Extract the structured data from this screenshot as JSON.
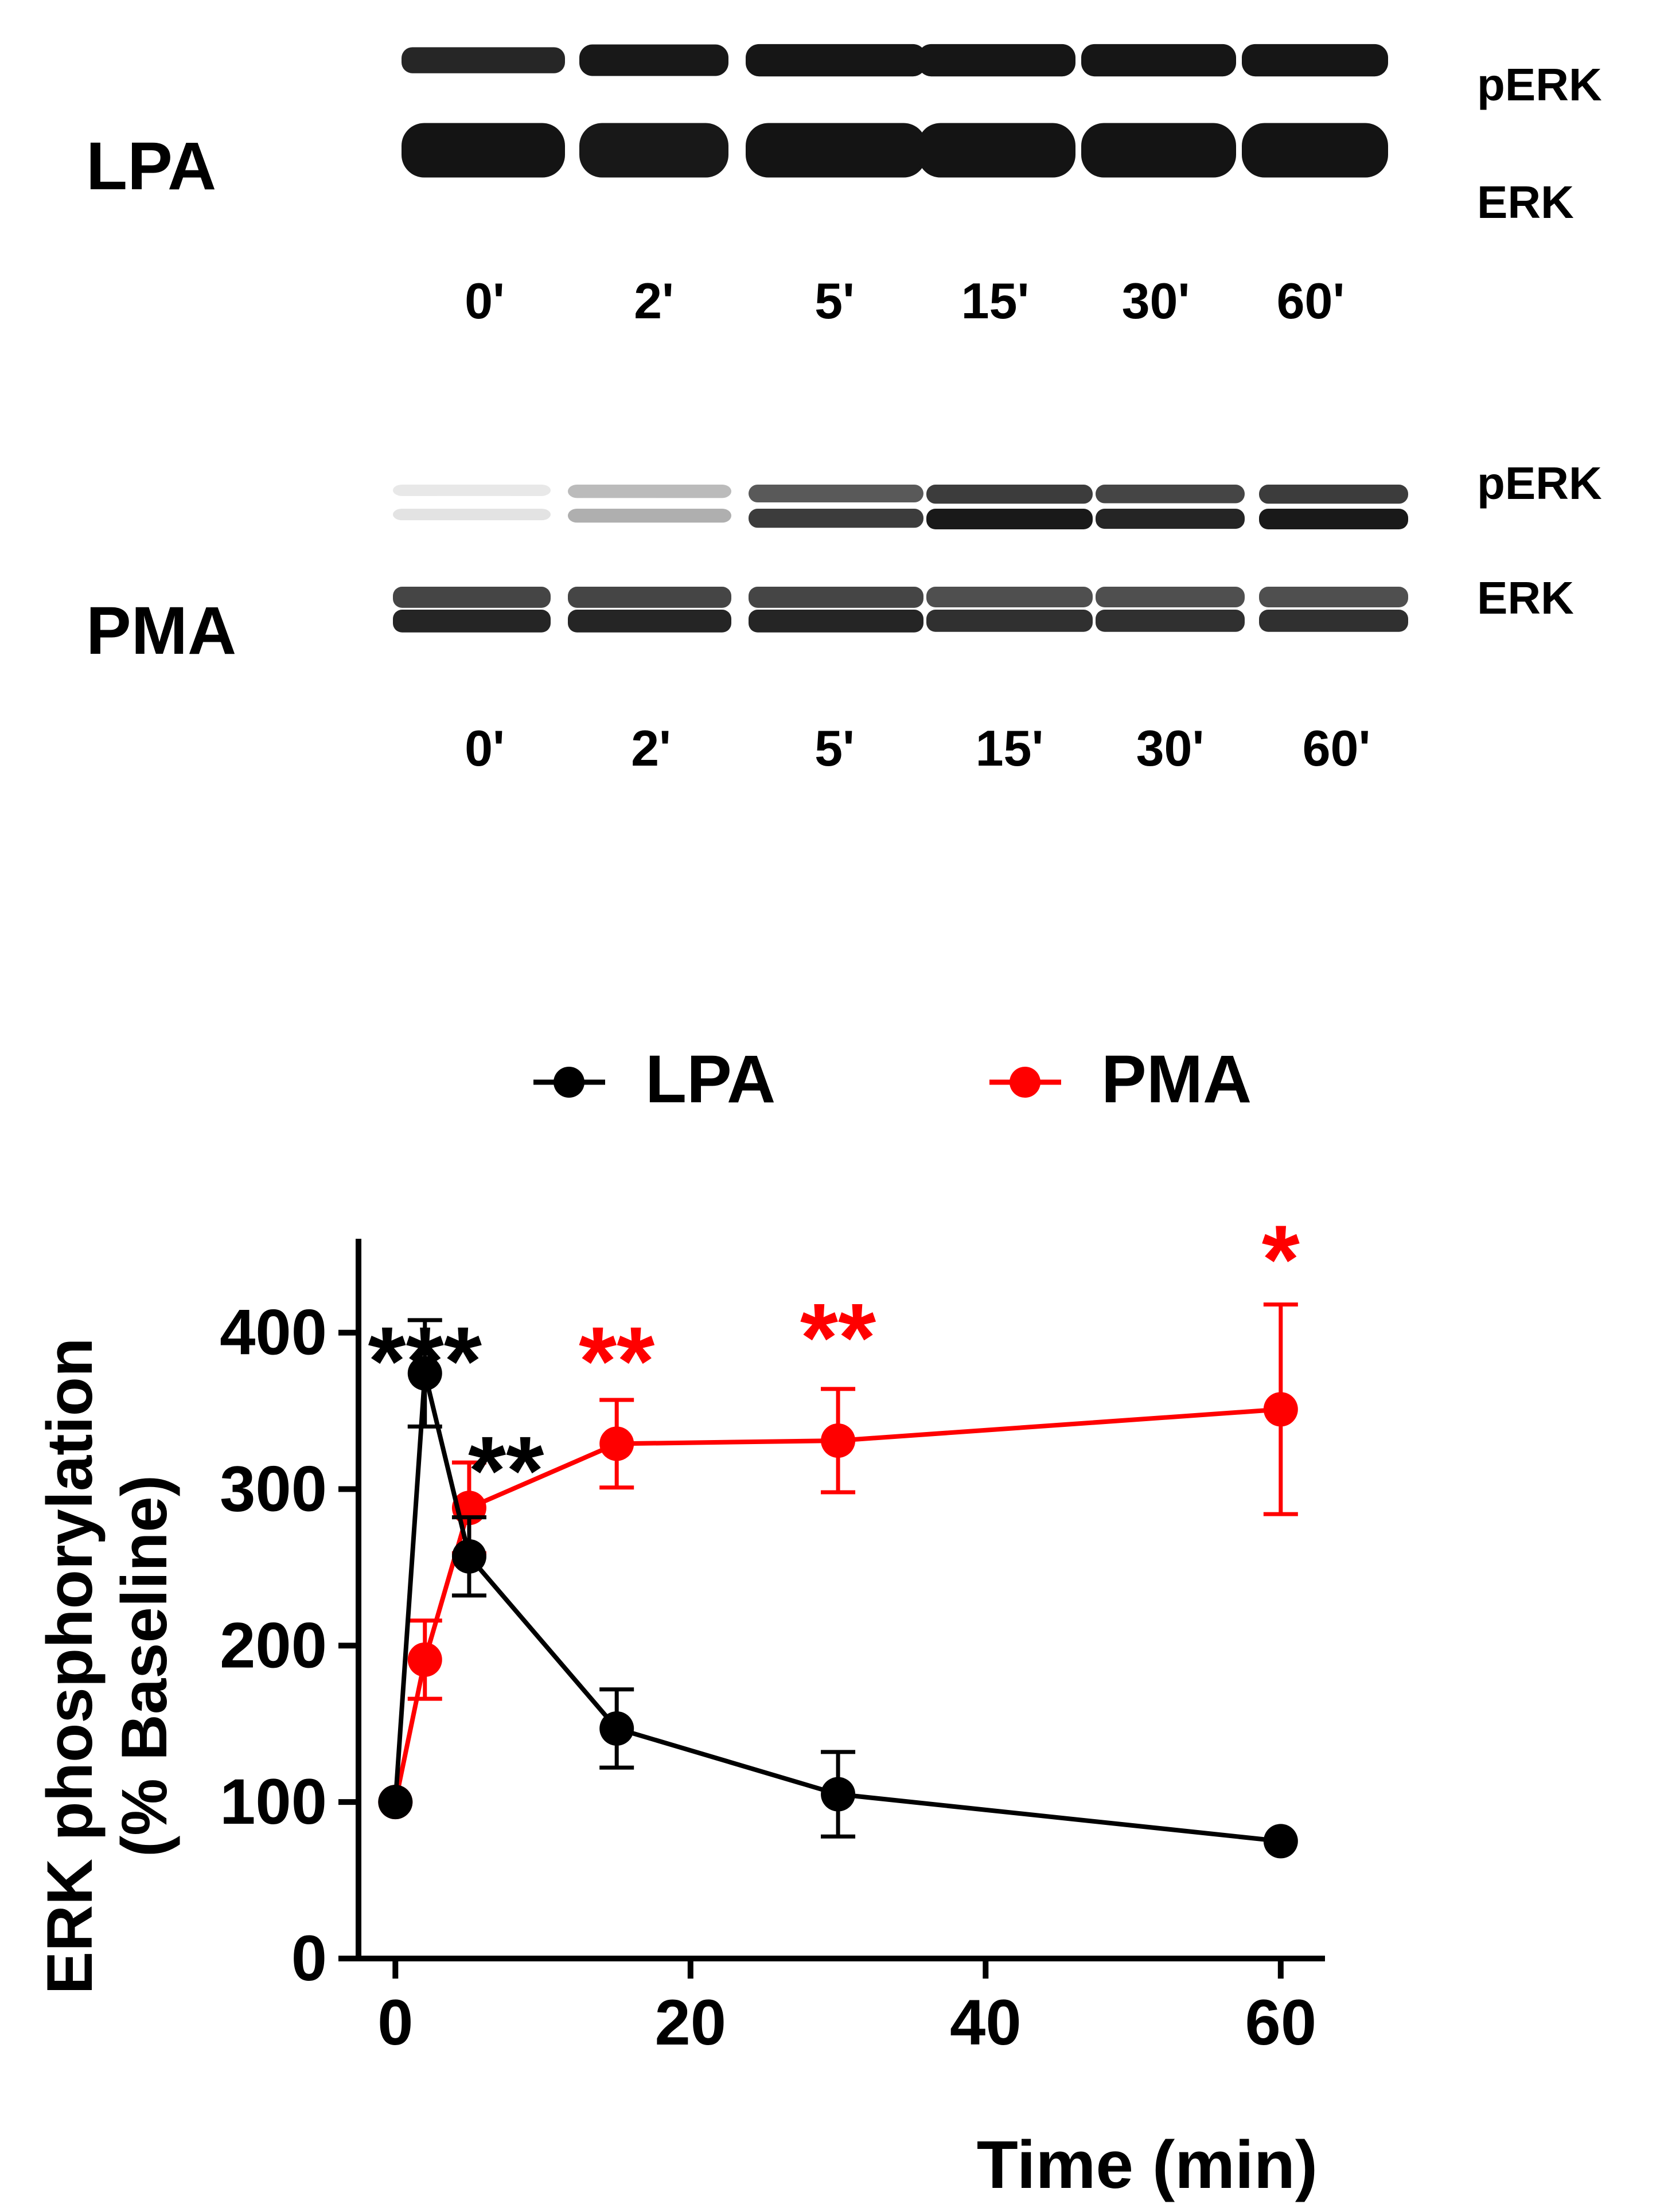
{
  "blots": [
    {
      "treatment": "LPA",
      "style": "lpa",
      "rows": [
        {
          "label": "pERK",
          "intensities": [
            0.55,
            0.9,
            0.95,
            0.95,
            0.95,
            0.95
          ]
        },
        {
          "label": "ERK",
          "intensities": [
            1.0,
            0.9,
            1.0,
            1.0,
            1.0,
            1.0
          ]
        }
      ],
      "lanes": [
        "0'",
        "2'",
        "5'",
        "15'",
        "30'",
        "60'"
      ]
    },
    {
      "treatment": "PMA",
      "style": "pma",
      "rows": [
        {
          "label": "pERK",
          "intensities": [
            0.12,
            0.35,
            0.85,
            1.0,
            0.95,
            1.0
          ]
        },
        {
          "label": "ERK",
          "intensities": [
            0.95,
            0.95,
            0.95,
            0.9,
            0.9,
            0.9
          ]
        }
      ],
      "lanes": [
        "0'",
        "2'",
        "5'",
        "15'",
        "30'",
        "60'"
      ]
    }
  ],
  "chart_data": {
    "type": "line",
    "xlabel": "Time (min)",
    "ylabel_line1": "ERK phosphorylation",
    "ylabel_line2": "(% Baseline)",
    "xlim": [
      -2.5,
      63
    ],
    "ylim": [
      0,
      460
    ],
    "xticks": [
      0,
      20,
      40,
      60
    ],
    "yticks": [
      0,
      100,
      200,
      300,
      400
    ],
    "legend_position": "top",
    "series": [
      {
        "name": "LPA",
        "color": "#000000",
        "x": [
          0,
          2,
          5,
          15,
          30,
          60
        ],
        "y": [
          100,
          374,
          257,
          147,
          105,
          75
        ],
        "err": [
          0,
          34,
          25,
          25,
          27,
          0
        ],
        "annotations": [
          {
            "x": 2,
            "y": 375,
            "text": "***"
          },
          {
            "x": 7.5,
            "y": 305,
            "text": "**"
          }
        ]
      },
      {
        "name": "PMA",
        "color": "#ff0000",
        "x": [
          0,
          2,
          5,
          15,
          30,
          60
        ],
        "y": [
          100,
          191,
          288,
          329,
          331,
          351
        ],
        "err": [
          0,
          25,
          29,
          28,
          33,
          67
        ],
        "annotations": [
          {
            "x": 15,
            "y": 375,
            "text": "**"
          },
          {
            "x": 30,
            "y": 390,
            "text": "**"
          },
          {
            "x": 60,
            "y": 440,
            "text": "*"
          }
        ]
      }
    ]
  }
}
